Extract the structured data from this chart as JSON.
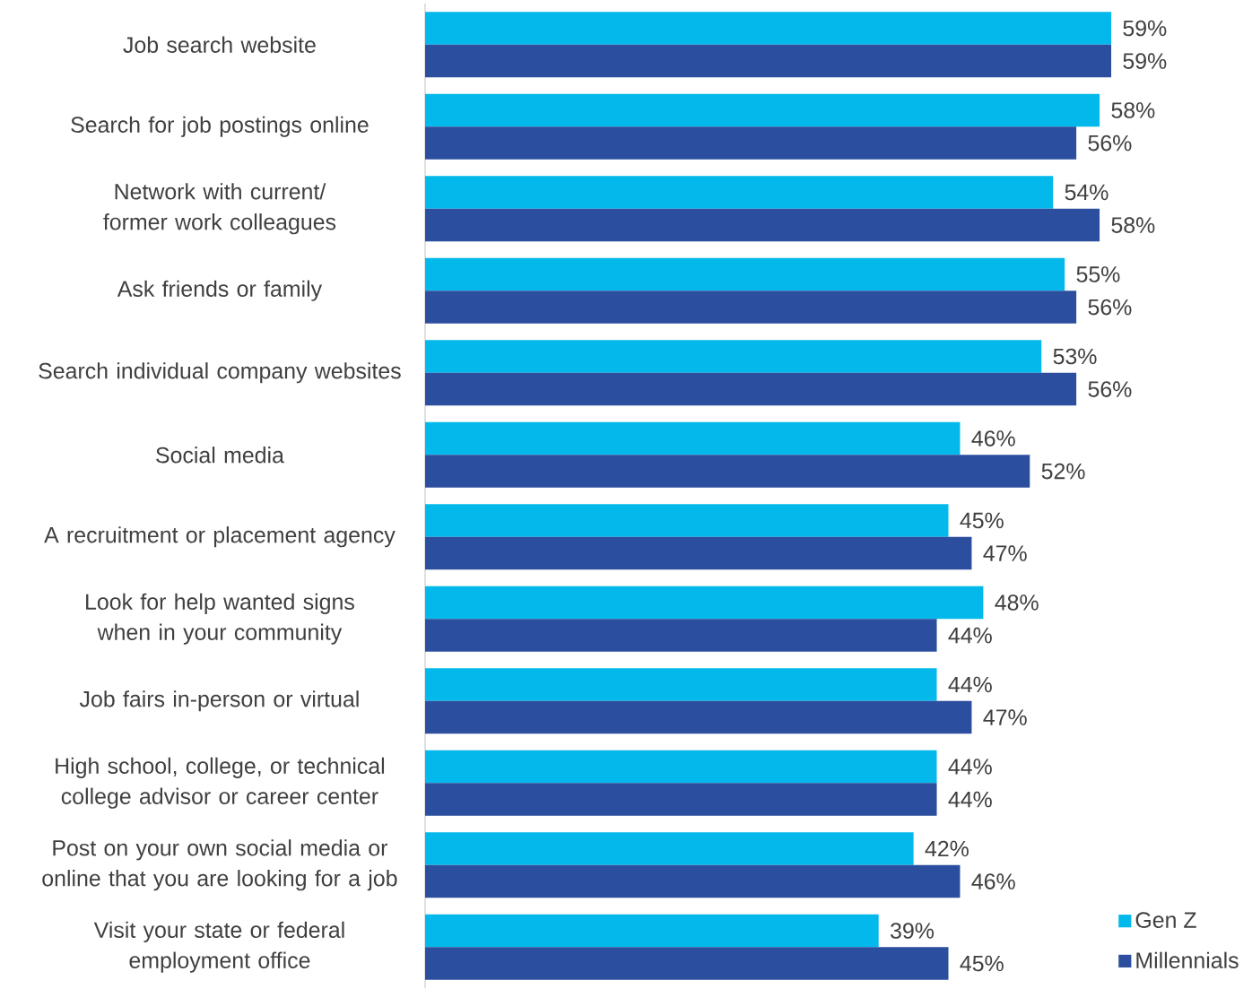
{
  "chart_data": {
    "type": "bar",
    "orientation": "horizontal",
    "categories": [
      "Job search website",
      "Search for job postings online",
      "Network with current/ former work colleagues",
      "Ask friends or family",
      "Search individual company websites",
      "Social media",
      "A recruitment or placement agency",
      "Look for help wanted signs when in your community",
      "Job fairs in-person or virtual",
      "High school, college, or technical college advisor or career center",
      "Post on your own social media or online that you are looking for a job",
      "Visit your state or federal employment office"
    ],
    "series": [
      {
        "name": "Gen Z",
        "color": "#03b8ea",
        "values": [
          59,
          58,
          54,
          55,
          53,
          46,
          45,
          48,
          44,
          44,
          42,
          39
        ],
        "value_labels": [
          "59%",
          "58%",
          "54%",
          "55%",
          "53%",
          "46%",
          "45%",
          "48%",
          "44%",
          "44%",
          "42%",
          "39%"
        ]
      },
      {
        "name": "Millennials",
        "color": "#2b4e9e",
        "values": [
          59,
          56,
          58,
          56,
          56,
          52,
          47,
          44,
          47,
          44,
          46,
          45
        ],
        "value_labels": [
          "59%",
          "56%",
          "58%",
          "56%",
          "56%",
          "52%",
          "47%",
          "44%",
          "47%",
          "44%",
          "46%",
          "45%"
        ]
      }
    ],
    "tick_labels": "y",
    "legend": "bottom right"
  }
}
